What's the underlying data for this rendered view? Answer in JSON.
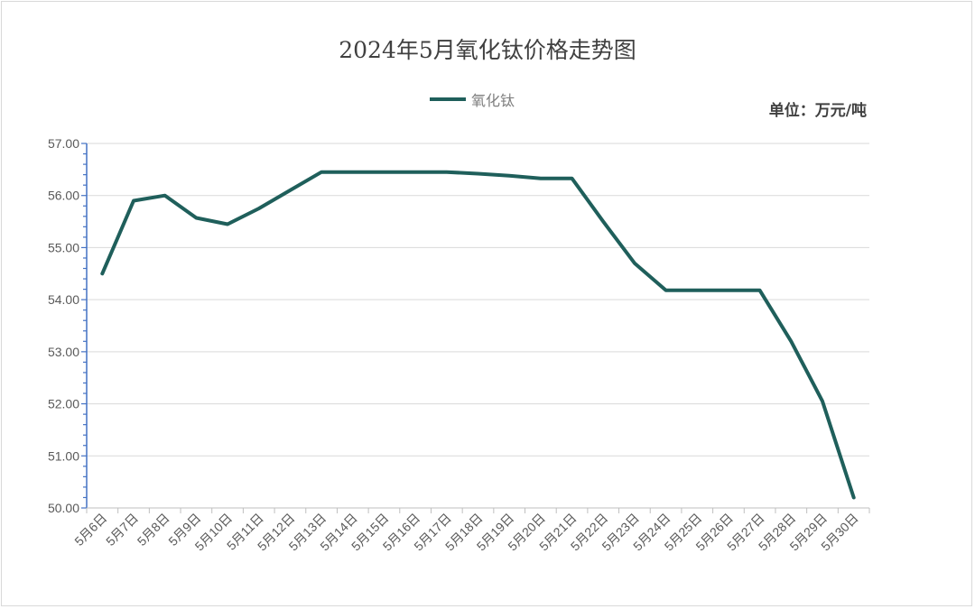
{
  "chart_data": {
    "type": "line",
    "title": "2024年5月氧化钛价格走势图",
    "unit_label": "单位：万元/吨",
    "ylim": [
      50,
      57
    ],
    "yticks": [
      "50.00",
      "51.00",
      "52.00",
      "53.00",
      "54.00",
      "55.00",
      "56.00",
      "57.00"
    ],
    "grid": true,
    "legend_position": "top",
    "categories": [
      "5月6日",
      "5月7日",
      "5月8日",
      "5月9日",
      "5月10日",
      "5月11日",
      "5月12日",
      "5月13日",
      "5月14日",
      "5月15日",
      "5月16日",
      "5月17日",
      "5月18日",
      "5月19日",
      "5月20日",
      "5月21日",
      "5月22日",
      "5月23日",
      "5月24日",
      "5月25日",
      "5月26日",
      "5月27日",
      "5月28日",
      "5月29日",
      "5月30日"
    ],
    "series": [
      {
        "name": "氧化钛",
        "color": "#1f5f5b",
        "values": [
          54.5,
          55.9,
          56.0,
          55.57,
          55.45,
          55.75,
          56.1,
          56.45,
          56.45,
          56.45,
          56.45,
          56.45,
          56.42,
          56.38,
          56.33,
          56.33,
          55.5,
          54.7,
          54.18,
          54.18,
          54.18,
          54.18,
          53.2,
          52.05,
          50.2
        ]
      }
    ]
  }
}
